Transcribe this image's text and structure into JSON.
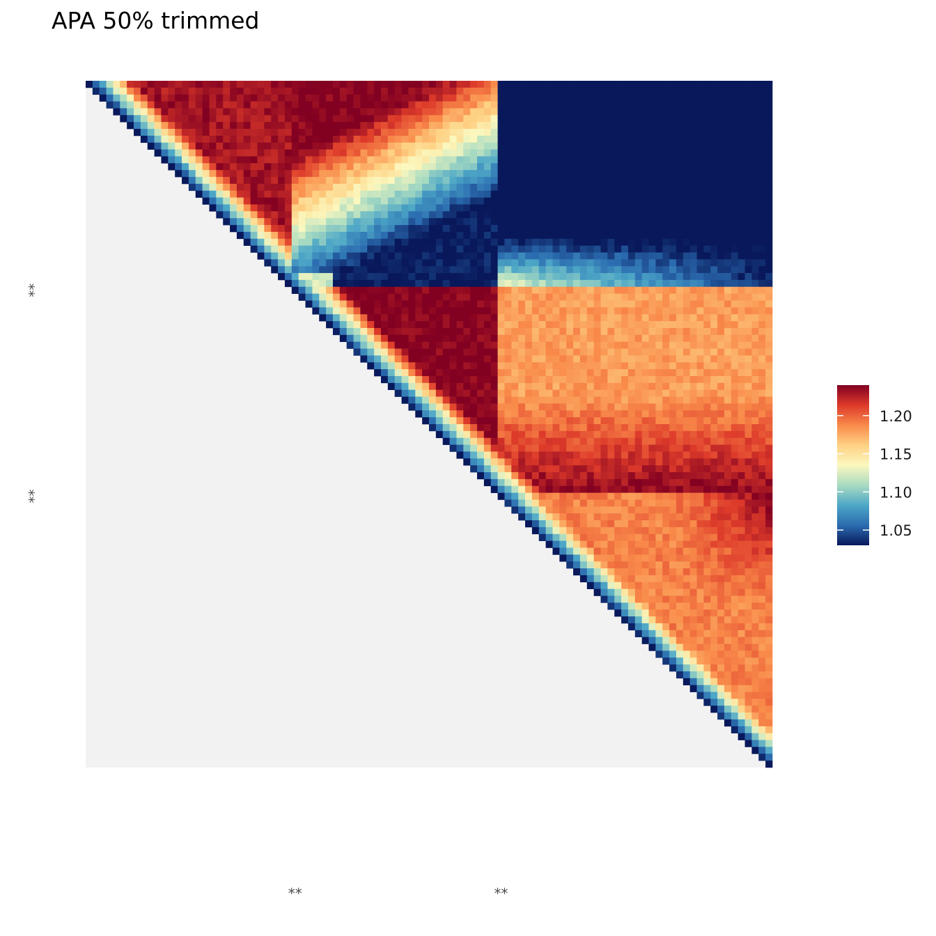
{
  "chart_data": {
    "type": "heatmap",
    "title": "APA 50% trimmed",
    "xlabel": "",
    "ylabel": "",
    "x_tick_labels": [
      "**",
      "**"
    ],
    "y_tick_labels": [
      "**",
      "**"
    ],
    "grid": false,
    "matrix_size": 100,
    "lower_triangle": "blank",
    "anchor_bins": [
      30,
      60
    ],
    "value_range": [
      1.03,
      1.24
    ],
    "colorscale": {
      "name": "RdYlBu (reversed)",
      "colors": [
        "#08185a",
        "#2b6cb0",
        "#4da7c7",
        "#a9dbc1",
        "#fbf8bf",
        "#fed183",
        "#f98a4a",
        "#dd3a2a",
        "#820021"
      ]
    },
    "legend": {
      "position": "right",
      "breaks": [
        1.05,
        1.1,
        1.15,
        1.2
      ],
      "labels": [
        "1.05",
        "1.10",
        "1.15",
        "1.20"
      ]
    },
    "structure": {
      "diagonal": "blue (~1.03) grading to yellow (~1.15) in the first ~5 bins off-diagonal",
      "domain_1": "bins 0-30 self-interaction, red (~1.23) enrichment",
      "domain_2": "bins 30-60 self-interaction, strongly saturated red (>1.24)",
      "domain_3": "bins 60-100, orange/red (~1.18-1.23) enrichment",
      "inter_domain_1_2": "blue (~1.03) depletion with yellow rim near bin 30",
      "inter_domain_2_3": "orange (~1.18) enrichment"
    }
  }
}
